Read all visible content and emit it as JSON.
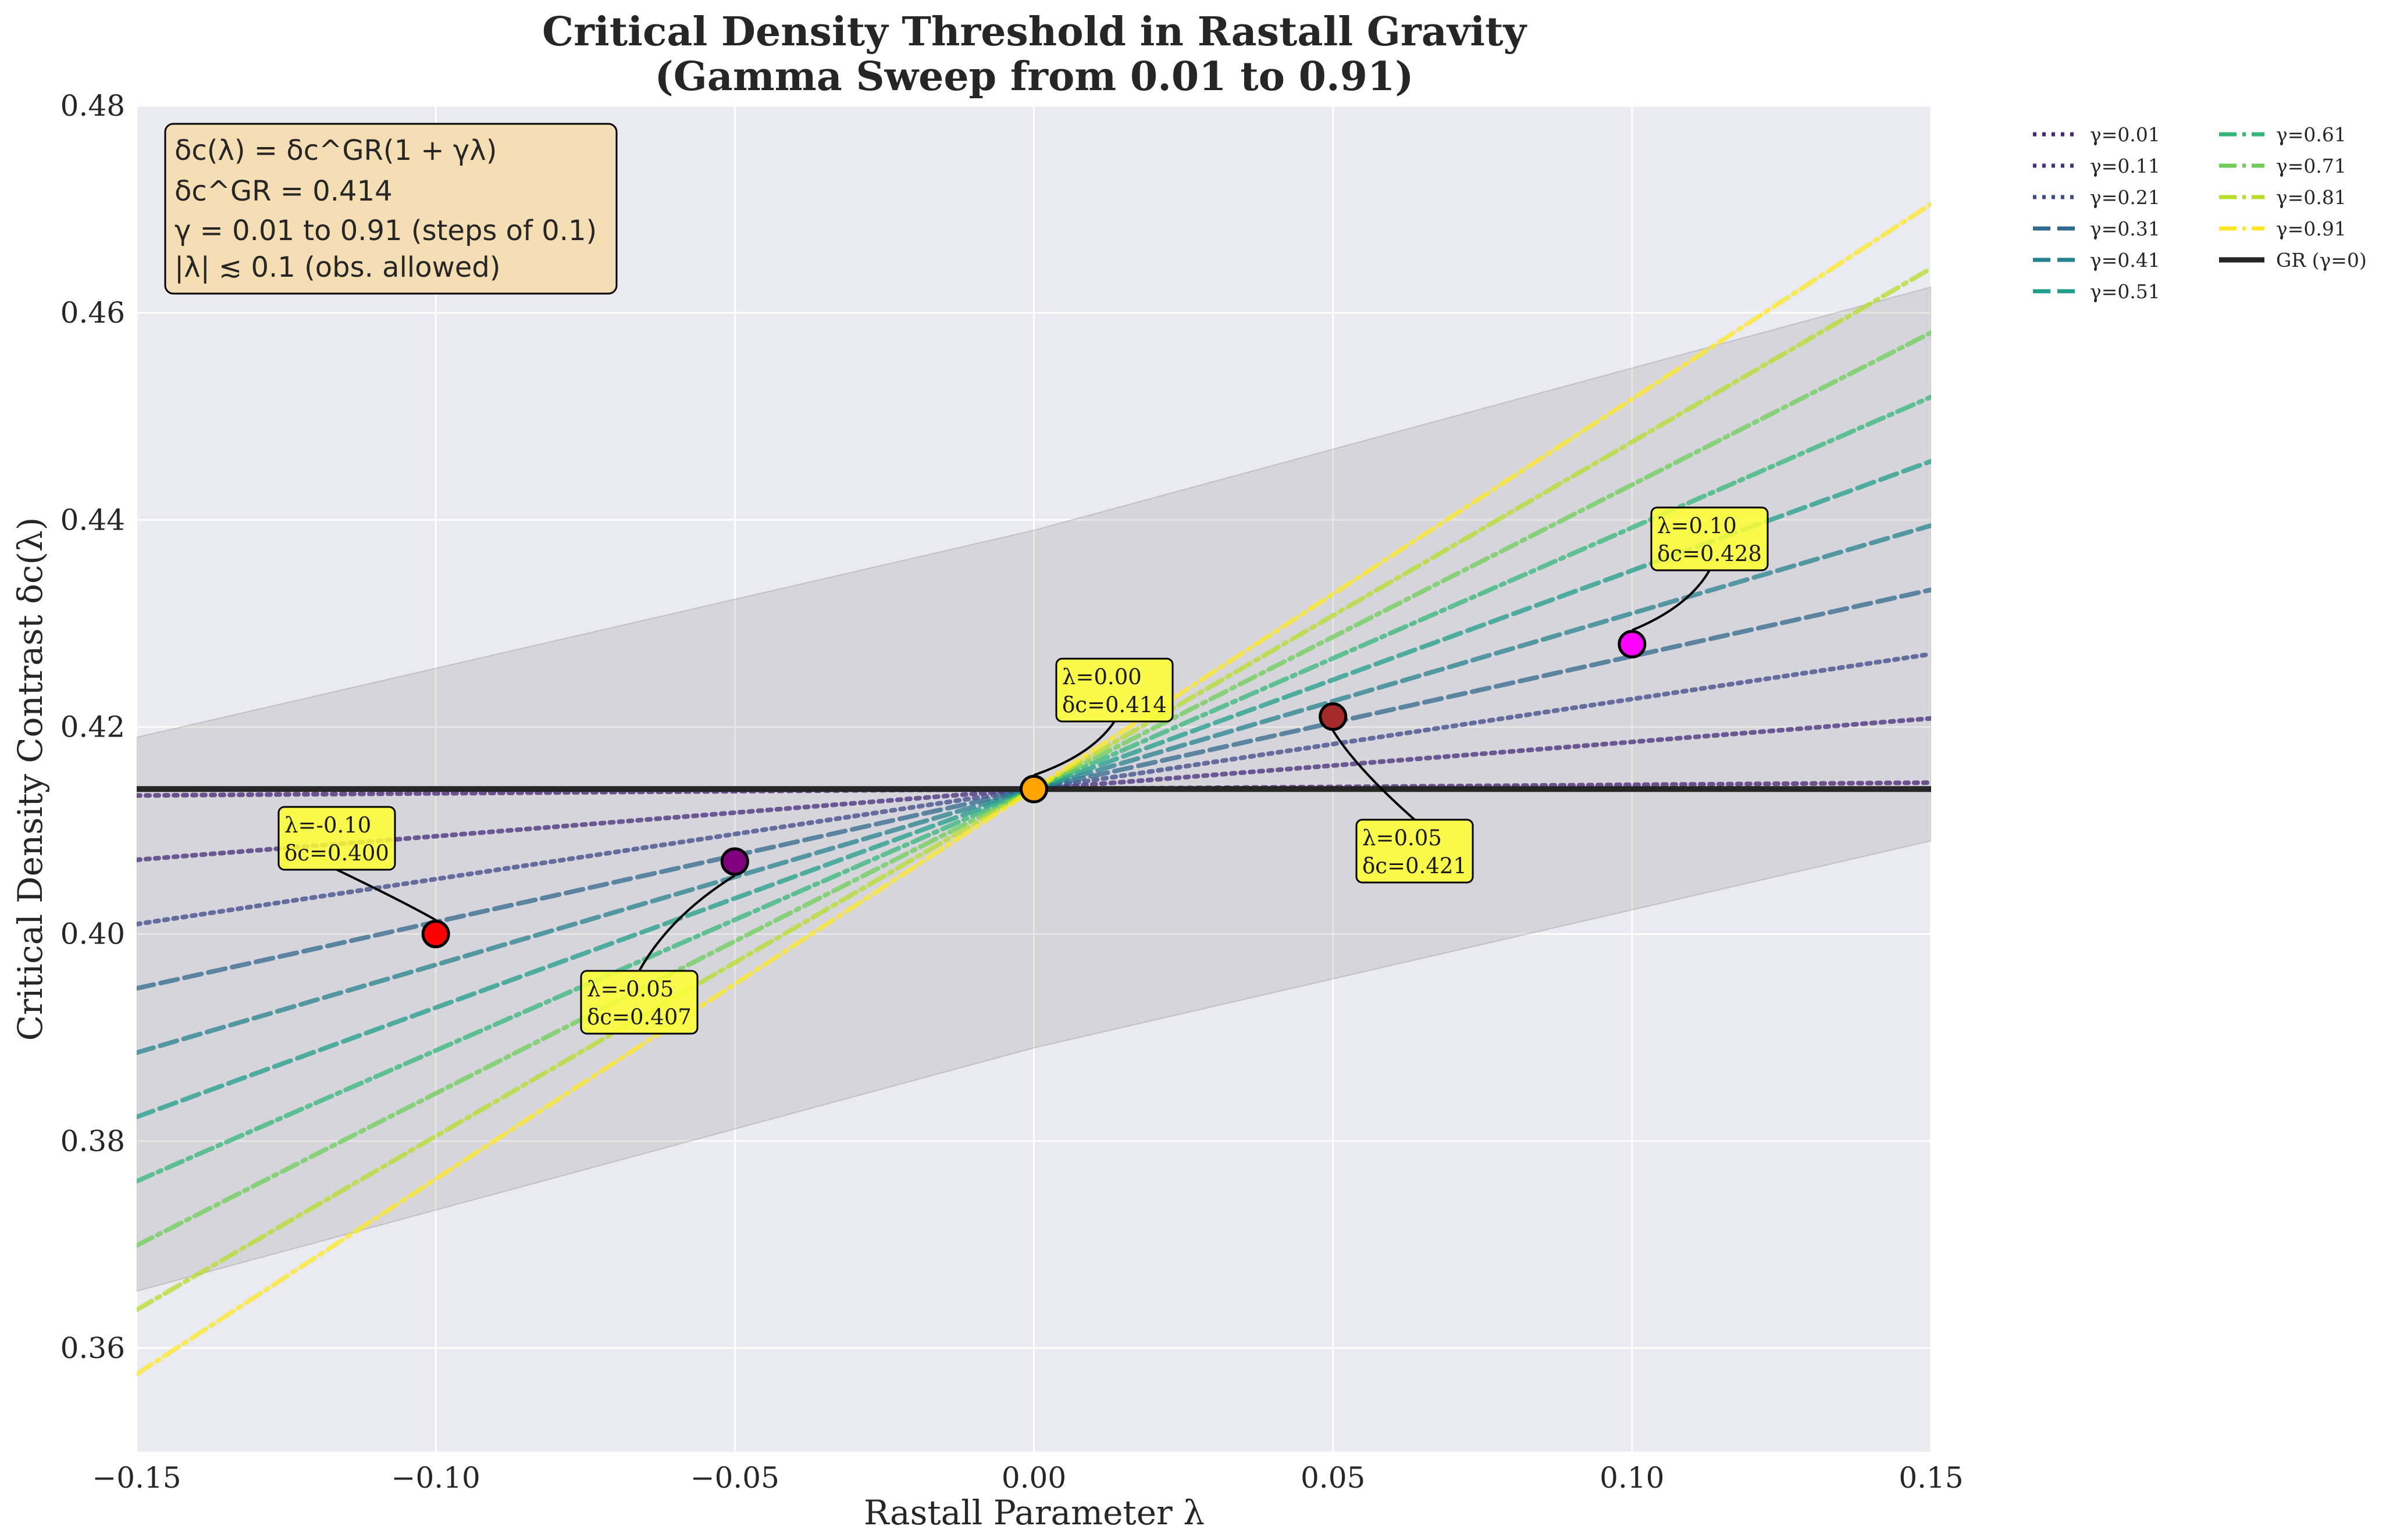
{
  "chart_data": {
    "type": "line",
    "title_line1": "Critical Density Threshold in Rastall Gravity",
    "title_line2": "(Gamma Sweep from 0.01 to 0.91)",
    "xlabel": "Rastall Parameter λ",
    "ylabel": "Critical Density Contrast δc(λ)",
    "xlim": [
      -0.15,
      0.15
    ],
    "ylim": [
      0.35,
      0.48
    ],
    "xticks": [
      "−0.15",
      "−0.10",
      "−0.05",
      "0.00",
      "0.05",
      "0.10",
      "0.15"
    ],
    "xtick_values": [
      -0.15,
      -0.1,
      -0.05,
      0.0,
      0.05,
      0.1,
      0.15
    ],
    "yticks": [
      "0.36",
      "0.38",
      "0.40",
      "0.42",
      "0.44",
      "0.46",
      "0.48"
    ],
    "ytick_values": [
      0.36,
      0.38,
      0.4,
      0.42,
      0.44,
      0.46,
      0.48
    ],
    "grid": true,
    "legend_position": "outside-right",
    "delta_gr": 0.414,
    "band": {
      "x": [
        -0.15,
        0.0,
        0.15
      ],
      "upper": [
        0.419,
        0.439,
        0.4625
      ],
      "lower": [
        0.3655,
        0.389,
        0.409
      ]
    },
    "series": [
      {
        "name": "γ=0.01",
        "gamma": 0.01,
        "style": "dotted",
        "color": "#482475"
      },
      {
        "name": "γ=0.11",
        "gamma": 0.11,
        "style": "dotted",
        "color": "#472d7b"
      },
      {
        "name": "γ=0.21",
        "gamma": 0.21,
        "style": "dotted",
        "color": "#3e4989"
      },
      {
        "name": "γ=0.31",
        "gamma": 0.31,
        "style": "dashed",
        "color": "#31688e"
      },
      {
        "name": "γ=0.41",
        "gamma": 0.41,
        "style": "dashed",
        "color": "#26828e"
      },
      {
        "name": "γ=0.51",
        "gamma": 0.51,
        "style": "dashed",
        "color": "#1f9e89"
      },
      {
        "name": "γ=0.61",
        "gamma": 0.61,
        "style": "dashdot",
        "color": "#35b779"
      },
      {
        "name": "γ=0.71",
        "gamma": 0.71,
        "style": "dashdot",
        "color": "#6ece58"
      },
      {
        "name": "γ=0.81",
        "gamma": 0.81,
        "style": "dashdot",
        "color": "#b5de2b"
      },
      {
        "name": "γ=0.91",
        "gamma": 0.91,
        "style": "dashdot",
        "color": "#fde725"
      }
    ],
    "gr_line": {
      "name": "GR (γ=0)",
      "value": 0.414,
      "color": "#262626"
    },
    "info_box": {
      "line1": "δc(λ) = δc^GR(1 + γλ)",
      "line2": "δc^GR = 0.414",
      "line3": "γ = 0.01 to 0.91 (steps of 0.1)",
      "line4": "|λ| ≲ 0.1 (obs. allowed)"
    },
    "markers": [
      {
        "x": -0.1,
        "y": 0.4,
        "color": "#ff0000",
        "label1": "λ=-0.10",
        "label2": "δc=0.400"
      },
      {
        "x": -0.05,
        "y": 0.407,
        "color": "#800080",
        "label1": "λ=-0.05",
        "label2": "δc=0.407"
      },
      {
        "x": 0.0,
        "y": 0.414,
        "color": "#ffa500",
        "label1": "λ=0.00",
        "label2": "δc=0.414"
      },
      {
        "x": 0.05,
        "y": 0.421,
        "color": "#a52a2a",
        "label1": "λ=0.05",
        "label2": "δc=0.421"
      },
      {
        "x": 0.1,
        "y": 0.428,
        "color": "#ff00ff",
        "label1": "λ=0.10",
        "label2": "δc=0.428"
      }
    ]
  }
}
